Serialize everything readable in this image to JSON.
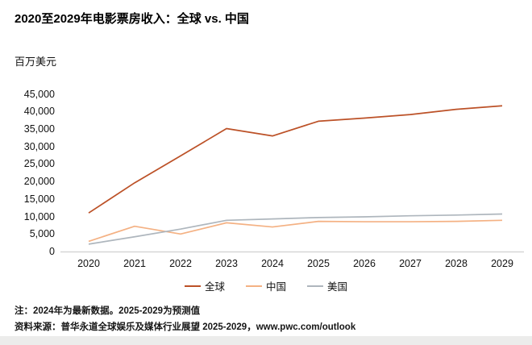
{
  "page": {
    "title": "2020至2029年电影票房收入：全球 vs. 中国",
    "unit_label": "百万美元",
    "note1": "注：2024年为最新数据。2025-2029为预测值",
    "note2": "资料来源：普华永道全球娱乐及媒体行业展望 2025-2029，www.pwc.com/outlook"
  },
  "colors": {
    "global_line": "#bc5127",
    "china_line": "#f4b183",
    "us_line": "#aeb6bd",
    "axis_line": "#d6d6d6",
    "text": "#111111",
    "bottom_strip": "#ececeb"
  },
  "chart_data": {
    "type": "line",
    "title": "2020至2029年电影票房收入：全球 vs. 中国",
    "ylabel": "百万美元",
    "xlabel": "",
    "x": [
      2020,
      2021,
      2022,
      2023,
      2024,
      2025,
      2026,
      2027,
      2028,
      2029
    ],
    "series": [
      {
        "name": "全球",
        "color": "#bc5127",
        "values": [
          11000,
          19600,
          27300,
          35100,
          33000,
          37200,
          38100,
          39100,
          40600,
          41600
        ]
      },
      {
        "name": "中国",
        "color": "#f4b183",
        "values": [
          2900,
          7200,
          5000,
          8200,
          7000,
          8600,
          8500,
          8500,
          8600,
          8900
        ]
      },
      {
        "name": "美国",
        "color": "#aeb6bd",
        "values": [
          2100,
          4200,
          6400,
          8900,
          9300,
          9700,
          9900,
          10200,
          10400,
          10700
        ]
      }
    ],
    "ylim": [
      0,
      45000
    ],
    "yticks": [
      0,
      5000,
      10000,
      15000,
      20000,
      25000,
      30000,
      35000,
      40000,
      45000
    ],
    "grid": false,
    "legend_position": "bottom"
  }
}
